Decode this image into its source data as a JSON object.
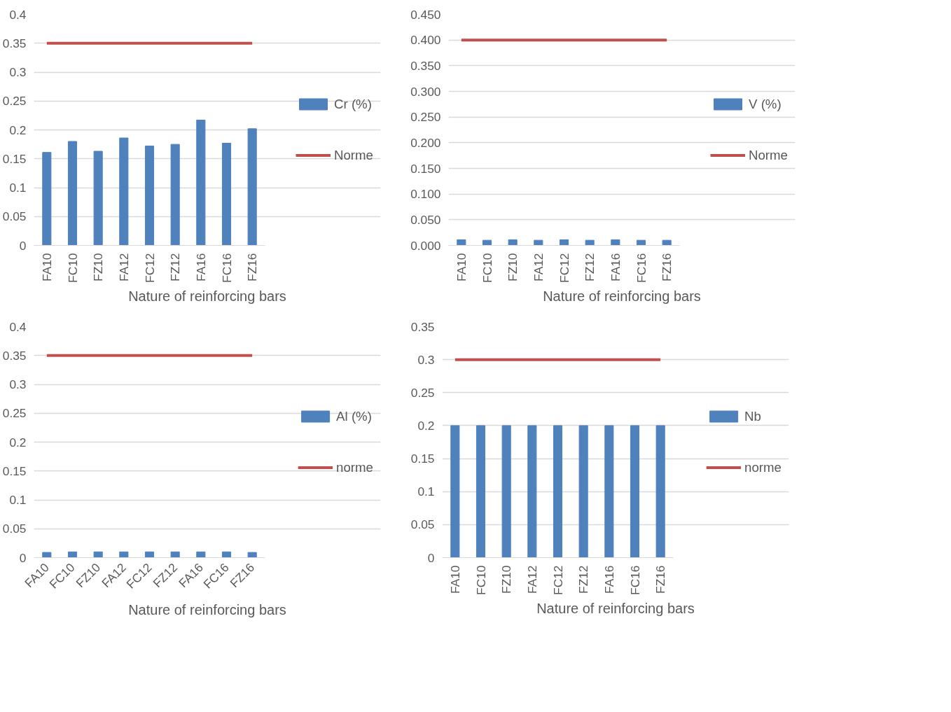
{
  "chart_data": [
    {
      "type": "bar",
      "categories": [
        "FA10",
        "FC10",
        "FZ10",
        "FA12",
        "FC12",
        "FZ12",
        "FA16",
        "FC16",
        "FZ16"
      ],
      "xlabel": "Nature of reinforcing bars",
      "ylim": [
        0,
        0.4
      ],
      "yticks": [
        0,
        0.05,
        0.1,
        0.15,
        0.2,
        0.25,
        0.3,
        0.35,
        0.4
      ],
      "grid": "y",
      "legend": "right",
      "series": [
        {
          "name": "Cr (%)",
          "color": "#4f81bd",
          "values": [
            0.161,
            0.18,
            0.163,
            0.186,
            0.172,
            0.175,
            0.217,
            0.177,
            0.202
          ]
        },
        {
          "name": "Norme",
          "type": "line",
          "color": "#c0504d",
          "values": [
            0.35,
            0.35,
            0.35,
            0.35,
            0.35,
            0.35,
            0.35,
            0.35,
            0.35
          ]
        }
      ]
    },
    {
      "type": "bar",
      "categories": [
        "FA10",
        "FC10",
        "FZ10",
        "FA12",
        "FC12",
        "FZ12",
        "FA16",
        "FC16",
        "FZ16"
      ],
      "xlabel": "Nature of reinforcing bars",
      "ylim": [
        0,
        0.45
      ],
      "yticks": [
        {
          "value": 0,
          "label": "0.000"
        },
        {
          "value": 0.05,
          "label": "0.050"
        },
        {
          "value": 0.1,
          "label": "0.100"
        },
        {
          "value": 0.15,
          "label": "0.150"
        },
        {
          "value": 0.2,
          "label": "0.200"
        },
        {
          "value": 0.25,
          "label": "0.250"
        },
        {
          "value": 0.3,
          "label": "0.300"
        },
        {
          "value": 0.35,
          "label": "0.350"
        },
        {
          "value": 0.4,
          "label": "0.400"
        },
        {
          "value": 0.45,
          "label": "0.450"
        }
      ],
      "grid": "y",
      "legend": "right",
      "series": [
        {
          "name": "V (%)",
          "color": "#4f81bd",
          "values": [
            0.011,
            0.01,
            0.011,
            0.01,
            0.011,
            0.01,
            0.011,
            0.01,
            0.01
          ]
        },
        {
          "name": "Norme",
          "type": "line",
          "color": "#c0504d",
          "values": [
            0.4,
            0.4,
            0.4,
            0.4,
            0.4,
            0.4,
            0.4,
            0.4,
            0.4
          ]
        }
      ]
    },
    {
      "type": "bar",
      "categories": [
        "FA10",
        "FC10",
        "FZ10",
        "FA12",
        "FC12",
        "FZ12",
        "FA16",
        "FC16",
        "FZ16"
      ],
      "xlabel": "Nature of reinforcing bars",
      "ylim": [
        0,
        0.4
      ],
      "yticks": [
        0,
        0.05,
        0.1,
        0.15,
        0.2,
        0.25,
        0.3,
        0.35,
        0.4
      ],
      "grid": "y",
      "legend": "right",
      "series": [
        {
          "name": "Al (%)",
          "color": "#4f81bd",
          "values": [
            0.009,
            0.01,
            0.01,
            0.01,
            0.01,
            0.01,
            0.01,
            0.01,
            0.009
          ]
        },
        {
          "name": "norme",
          "type": "line",
          "color": "#c0504d",
          "values": [
            0.35,
            0.35,
            0.35,
            0.35,
            0.35,
            0.35,
            0.35,
            0.35,
            0.35
          ]
        }
      ]
    },
    {
      "type": "bar",
      "categories": [
        "FA10",
        "FC10",
        "FZ10",
        "FA12",
        "FC12",
        "FZ12",
        "FA16",
        "FC16",
        "FZ16"
      ],
      "xlabel": "Nature of reinforcing bars",
      "ylim": [
        0,
        0.35
      ],
      "yticks": [
        0,
        0.05,
        0.1,
        0.15,
        0.2,
        0.25,
        0.3,
        0.35
      ],
      "grid": "y",
      "legend": "right",
      "series": [
        {
          "name": "Nb",
          "color": "#4f81bd",
          "values": [
            0.2,
            0.2,
            0.2,
            0.2,
            0.2,
            0.2,
            0.2,
            0.2,
            0.2
          ]
        },
        {
          "name": "norme",
          "type": "line",
          "color": "#c0504d",
          "values": [
            0.3,
            0.3,
            0.3,
            0.3,
            0.3,
            0.3,
            0.3,
            0.3,
            0.3
          ]
        }
      ]
    }
  ]
}
